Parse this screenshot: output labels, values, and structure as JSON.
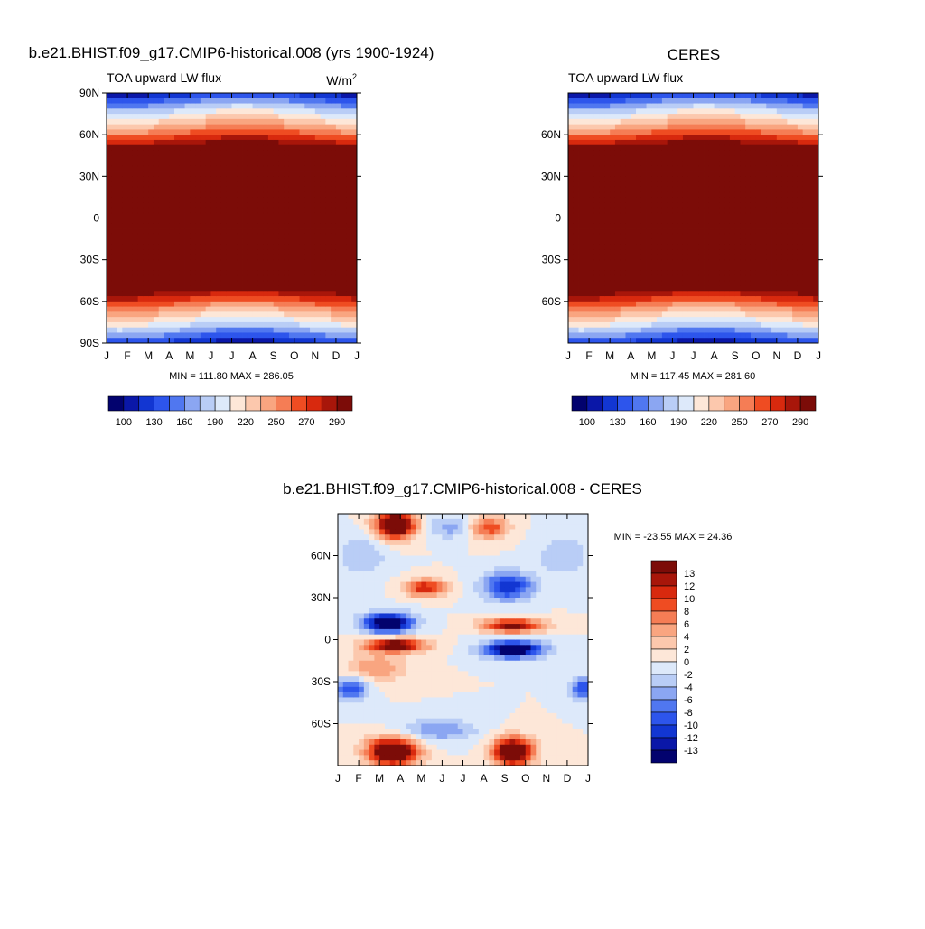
{
  "panels": {
    "model": {
      "title": "b.e21.BHIST.f09_g17.CMIP6-historical.008 (yrs 1900-1924)",
      "subtitle": "TOA upward LW flux",
      "units": "W/m",
      "units_sup": "2",
      "stats": "MIN = 111.80 MAX = 286.05"
    },
    "obs": {
      "title": "CERES",
      "subtitle": "TOA upward LW flux",
      "stats": "MIN = 117.45 MAX = 281.60"
    },
    "diff": {
      "title": "b.e21.BHIST.f09_g17.CMIP6-historical.008 - CERES",
      "stats": "MIN = -23.55 MAX =  24.36"
    }
  },
  "chart_data": [
    {
      "type": "heatmap",
      "id": "model",
      "title": "b.e21.BHIST.f09_g17.CMIP6-historical.008 (yrs 1900-1924)",
      "subtitle": "TOA upward LW flux",
      "x_ticks": [
        "J",
        "F",
        "M",
        "A",
        "M",
        "J",
        "J",
        "A",
        "S",
        "O",
        "N",
        "D",
        "J"
      ],
      "y_ticks": [
        "90N",
        "60N",
        "30N",
        "0",
        "30S",
        "60S",
        "90S"
      ],
      "ylim": [
        -90,
        90
      ],
      "colorbar": {
        "ticks": [
          "100",
          "130",
          "160",
          "190",
          "220",
          "250",
          "270",
          "290"
        ],
        "colors": [
          "#02026e",
          "#0a17a8",
          "#1236d2",
          "#2d55ec",
          "#5077f0",
          "#8ba6f2",
          "#b9cdf6",
          "#dde9fa",
          "#fde7d8",
          "#fcc8ad",
          "#f9a580",
          "#f57d55",
          "#ef4c22",
          "#d8290e",
          "#a8160a",
          "#7c0c08"
        ]
      },
      "min": 111.8,
      "max": 286.05
    },
    {
      "type": "heatmap",
      "id": "obs",
      "title": "CERES",
      "subtitle": "TOA upward LW flux",
      "x_ticks": [
        "J",
        "F",
        "M",
        "A",
        "M",
        "J",
        "J",
        "A",
        "S",
        "O",
        "N",
        "D",
        "J"
      ],
      "y_ticks": [
        "60N",
        "30N",
        "0",
        "30S",
        "60S"
      ],
      "ylim": [
        -90,
        90
      ],
      "colorbar": {
        "ticks": [
          "100",
          "130",
          "160",
          "190",
          "220",
          "250",
          "270",
          "290"
        ],
        "colors": [
          "#02026e",
          "#0a17a8",
          "#1236d2",
          "#2d55ec",
          "#5077f0",
          "#8ba6f2",
          "#b9cdf6",
          "#dde9fa",
          "#fde7d8",
          "#fcc8ad",
          "#f9a580",
          "#f57d55",
          "#ef4c22",
          "#d8290e",
          "#a8160a",
          "#7c0c08"
        ]
      },
      "min": 117.45,
      "max": 281.6
    },
    {
      "type": "heatmap",
      "id": "diff",
      "title": "b.e21.BHIST.f09_g17.CMIP6-historical.008 - CERES",
      "x_ticks": [
        "J",
        "F",
        "M",
        "A",
        "M",
        "J",
        "J",
        "A",
        "S",
        "O",
        "N",
        "D",
        "J"
      ],
      "y_ticks": [
        "60N",
        "30N",
        "0",
        "30S",
        "60S"
      ],
      "ylim": [
        -90,
        90
      ],
      "colorbar": {
        "ticks": [
          "13",
          "12",
          "10",
          "8",
          "6",
          "4",
          "2",
          "0",
          "-2",
          "-4",
          "-6",
          "-8",
          "-10",
          "-12",
          "-13"
        ],
        "colors": [
          "#7c0c08",
          "#a8160a",
          "#d8290e",
          "#ef4c22",
          "#f57d55",
          "#f9a580",
          "#fcc8ad",
          "#fde7d8",
          "#dde9fa",
          "#b9cdf6",
          "#8ba6f2",
          "#5077f0",
          "#2d55ec",
          "#1236d2",
          "#0a17a8",
          "#02026e"
        ]
      },
      "min": -23.55,
      "max": 24.36
    }
  ]
}
